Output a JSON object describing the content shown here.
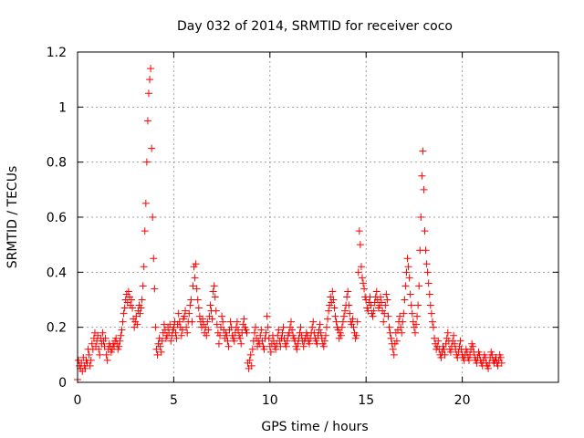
{
  "chart_data": {
    "type": "scatter",
    "title": "Day 032 of 2014, SRMTID for receiver coco",
    "xlabel": "GPS time / hours",
    "ylabel": "SRMTID / TECUs",
    "xlim": [
      0,
      25
    ],
    "ylim": [
      0,
      1.2
    ],
    "x_ticks": [
      0,
      5,
      10,
      15,
      20
    ],
    "x_tick_labels": [
      "0",
      "5",
      "10",
      "15",
      "20"
    ],
    "y_ticks": [
      0,
      0.2,
      0.4,
      0.6,
      0.8,
      1,
      1.2
    ],
    "y_tick_labels": [
      "0",
      "0.2",
      "0.4",
      "0.6",
      "0.8",
      "1",
      "1.2"
    ],
    "grid": true,
    "marker": "+",
    "marker_color": "#ff0000",
    "series": [
      {
        "name": "SRMTID",
        "x_start": 0.0,
        "x_step": 0.05,
        "y": [
          0.01,
          0.08,
          0.06,
          0.05,
          0.07,
          0.04,
          0.09,
          0.06,
          0.05,
          0.08,
          0.07,
          0.12,
          0.1,
          0.06,
          0.08,
          0.14,
          0.12,
          0.16,
          0.18,
          0.13,
          0.15,
          0.17,
          0.12,
          0.1,
          0.16,
          0.14,
          0.18,
          0.15,
          0.13,
          0.16,
          0.1,
          0.08,
          0.12,
          0.14,
          0.13,
          0.11,
          0.12,
          0.14,
          0.13,
          0.15,
          0.16,
          0.14,
          0.12,
          0.13,
          0.15,
          0.17,
          0.19,
          0.22,
          0.25,
          0.27,
          0.3,
          0.32,
          0.29,
          0.33,
          0.31,
          0.28,
          0.3,
          0.27,
          0.23,
          0.2,
          0.22,
          0.24,
          0.21,
          0.26,
          0.28,
          0.25,
          0.27,
          0.3,
          0.35,
          0.42,
          0.55,
          0.65,
          0.8,
          0.95,
          1.05,
          1.1,
          1.14,
          0.85,
          0.6,
          0.45,
          0.34,
          0.2,
          0.12,
          0.1,
          0.14,
          0.16,
          0.13,
          0.11,
          0.15,
          0.18,
          0.21,
          0.19,
          0.16,
          0.17,
          0.2,
          0.18,
          0.21,
          0.15,
          0.17,
          0.19,
          0.2,
          0.22,
          0.18,
          0.16,
          0.21,
          0.25,
          0.22,
          0.2,
          0.17,
          0.19,
          0.23,
          0.24,
          0.26,
          0.2,
          0.18,
          0.22,
          0.25,
          0.28,
          0.3,
          0.22,
          0.35,
          0.42,
          0.38,
          0.43,
          0.34,
          0.3,
          0.27,
          0.24,
          0.22,
          0.2,
          0.23,
          0.21,
          0.18,
          0.2,
          0.17,
          0.22,
          0.19,
          0.24,
          0.28,
          0.26,
          0.23,
          0.33,
          0.35,
          0.31,
          0.26,
          0.21,
          0.18,
          0.14,
          0.17,
          0.2,
          0.24,
          0.22,
          0.19,
          0.16,
          0.18,
          0.17,
          0.15,
          0.13,
          0.19,
          0.22,
          0.2,
          0.17,
          0.16,
          0.15,
          0.18,
          0.2,
          0.22,
          0.19,
          0.17,
          0.16,
          0.14,
          0.18,
          0.21,
          0.23,
          0.2,
          0.19,
          0.18,
          0.07,
          0.05,
          0.08,
          0.1,
          0.06,
          0.12,
          0.15,
          0.18,
          0.2,
          0.16,
          0.13,
          0.15,
          0.14,
          0.17,
          0.19,
          0.15,
          0.13,
          0.12,
          0.16,
          0.18,
          0.24,
          0.2,
          0.16,
          0.13,
          0.11,
          0.14,
          0.17,
          0.15,
          0.13,
          0.12,
          0.14,
          0.17,
          0.19,
          0.15,
          0.13,
          0.16,
          0.18,
          0.2,
          0.16,
          0.14,
          0.13,
          0.15,
          0.17,
          0.18,
          0.2,
          0.22,
          0.19,
          0.17,
          0.16,
          0.15,
          0.13,
          0.12,
          0.14,
          0.16,
          0.18,
          0.2,
          0.17,
          0.15,
          0.13,
          0.15,
          0.16,
          0.18,
          0.17,
          0.15,
          0.14,
          0.16,
          0.18,
          0.2,
          0.22,
          0.18,
          0.16,
          0.15,
          0.14,
          0.17,
          0.19,
          0.21,
          0.18,
          0.16,
          0.14,
          0.13,
          0.15,
          0.17,
          0.2,
          0.23,
          0.26,
          0.28,
          0.31,
          0.29,
          0.33,
          0.3,
          0.27,
          0.24,
          0.22,
          0.2,
          0.19,
          0.16,
          0.18,
          0.17,
          0.2,
          0.22,
          0.24,
          0.26,
          0.28,
          0.31,
          0.33,
          0.28,
          0.25,
          0.22,
          0.21,
          0.23,
          0.2,
          0.18,
          0.16,
          0.17,
          0.22,
          0.4,
          0.55,
          0.5,
          0.42,
          0.38,
          0.36,
          0.34,
          0.31,
          0.3,
          0.27,
          0.26,
          0.29,
          0.31,
          0.28,
          0.25,
          0.24,
          0.26,
          0.29,
          0.31,
          0.33,
          0.3,
          0.27,
          0.28,
          0.31,
          0.29,
          0.26,
          0.22,
          0.25,
          0.28,
          0.32,
          0.3,
          0.24,
          0.2,
          0.18,
          0.16,
          0.14,
          0.12,
          0.1,
          0.14,
          0.18,
          0.15,
          0.19,
          0.22,
          0.24,
          0.2,
          0.18,
          0.22,
          0.25,
          0.3,
          0.35,
          0.4,
          0.45,
          0.42,
          0.38,
          0.32,
          0.28,
          0.25,
          0.22,
          0.2,
          0.18,
          0.21,
          0.24,
          0.28,
          0.35,
          0.48,
          0.6,
          0.75,
          0.84,
          0.7,
          0.55,
          0.48,
          0.43,
          0.4,
          0.36,
          0.32,
          0.28,
          0.25,
          0.22,
          0.2,
          0.16,
          0.14,
          0.12,
          0.13,
          0.15,
          0.12,
          0.1,
          0.09,
          0.11,
          0.13,
          0.12,
          0.1,
          0.14,
          0.16,
          0.18,
          0.15,
          0.12,
          0.11,
          0.13,
          0.15,
          0.17,
          0.14,
          0.12,
          0.1,
          0.09,
          0.11,
          0.13,
          0.15,
          0.12,
          0.1,
          0.09,
          0.08,
          0.1,
          0.12,
          0.11,
          0.09,
          0.08,
          0.1,
          0.12,
          0.14,
          0.13,
          0.11,
          0.09,
          0.08,
          0.07,
          0.09,
          0.11,
          0.1,
          0.08,
          0.07,
          0.06,
          0.08,
          0.1,
          0.09,
          0.07,
          0.06,
          0.05,
          0.07,
          0.09,
          0.11,
          0.1,
          0.08,
          0.07,
          0.08,
          0.09,
          0.07,
          0.06,
          0.08,
          0.1,
          0.09,
          0.07
        ]
      }
    ]
  }
}
